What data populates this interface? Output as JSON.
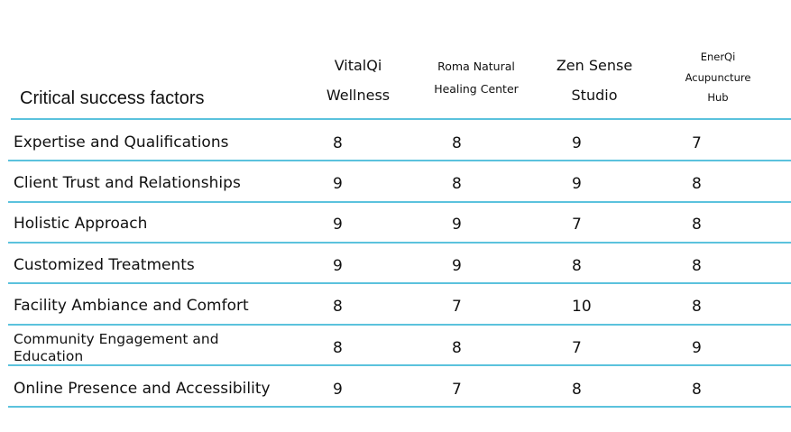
{
  "table": {
    "title": "Critical success factors",
    "columns": [
      {
        "lines": [
          "VitalQi",
          "Wellness"
        ]
      },
      {
        "lines": [
          "Roma Natural",
          "Healing Center"
        ]
      },
      {
        "lines": [
          "Zen Sense",
          "Studio"
        ]
      },
      {
        "lines": [
          "EnerQi",
          "Acupuncture",
          "Hub"
        ]
      }
    ],
    "rows": [
      {
        "factor": "Expertise and Qualifications",
        "values": [
          "8",
          "8",
          "9",
          "7"
        ]
      },
      {
        "factor": "Client Trust and Relationships",
        "values": [
          "9",
          "8",
          "9",
          "8"
        ]
      },
      {
        "factor": "Holistic Approach",
        "values": [
          "9",
          "9",
          "7",
          "8"
        ]
      },
      {
        "factor": "Customized Treatments",
        "values": [
          "9",
          "9",
          "8",
          "8"
        ]
      },
      {
        "factor": "Facility Ambiance and Comfort",
        "values": [
          "8",
          "7",
          "10",
          "8"
        ]
      },
      {
        "factor": "Community Engagement and Education",
        "values": [
          "8",
          "8",
          "7",
          "9"
        ]
      },
      {
        "factor": "Online Presence and Accessibility",
        "values": [
          "9",
          "7",
          "8",
          "8"
        ]
      }
    ]
  },
  "colors": {
    "rule": "#5bc2dd",
    "text": "#111111"
  }
}
